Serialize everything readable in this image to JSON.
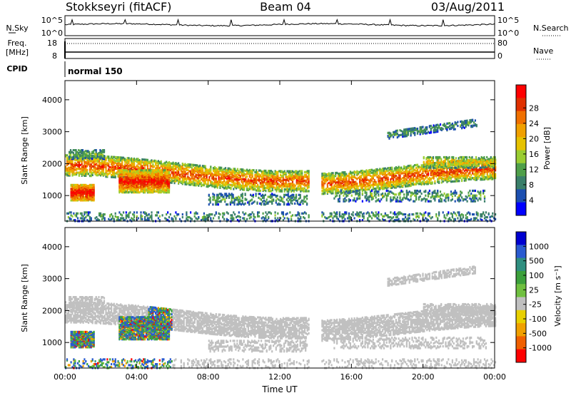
{
  "header": {
    "station": "Stokkseyri (fitACF)",
    "beam": "Beam 04",
    "date": "03/Aug/2011"
  },
  "status_panels": {
    "nsky_label": "N.Sky",
    "nsky_ticks": [
      "10^5",
      "10^0"
    ],
    "nsearch_label": "N.Search",
    "nsearch_ticks": [
      "10^5",
      "10^0"
    ],
    "freq_label_line1": "Freq.",
    "freq_label_line2": "[MHz]",
    "freq_ticks": [
      "18",
      "8"
    ],
    "nave_label": "Nave",
    "nave_ticks": [
      "80",
      "0"
    ],
    "cpid_label": "CPID",
    "cpid_value": "normal 150"
  },
  "chart_data": [
    {
      "type": "heatmap",
      "name": "power",
      "ylabel": "Slant Range [km]",
      "yticks": [
        1000,
        2000,
        3000,
        4000
      ],
      "ylim": [
        200,
        4600
      ],
      "xticks": [
        "00:00",
        "04:00",
        "08:00",
        "12:00",
        "16:00",
        "20:00",
        "00:00"
      ],
      "xlim_hours": [
        0,
        24
      ],
      "colorbar": {
        "label": "Power [dB]",
        "ticks": [
          "4",
          "8",
          "12",
          "16",
          "20",
          "24",
          "28"
        ],
        "colors": [
          "#0000ff",
          "#1c4fb0",
          "#3a7f6a",
          "#4f9f4a",
          "#9acd32",
          "#e6c200",
          "#f0a000",
          "#f07000",
          "#e03000",
          "#ff0000"
        ]
      }
    },
    {
      "type": "heatmap",
      "name": "velocity",
      "ylabel": "Slant Range [km]",
      "yticks": [
        1000,
        2000,
        3000,
        4000
      ],
      "ylim": [
        200,
        4600
      ],
      "xticks": [
        "00:00",
        "04:00",
        "08:00",
        "12:00",
        "16:00",
        "20:00",
        "00:00"
      ],
      "xlabel": "Time UT",
      "xlim_hours": [
        0,
        24
      ],
      "colorbar": {
        "label": "Velocity [m s⁻¹]",
        "ticks": [
          "1000",
          "500",
          "100",
          "25",
          "-25",
          "-100",
          "-500",
          "-1000"
        ],
        "colors": [
          "#0000d0",
          "#2a5bd0",
          "#2f8f80",
          "#3ca03c",
          "#70c040",
          "#c0c0c0",
          "#e8d000",
          "#f0a000",
          "#f06000",
          "#ff0000"
        ]
      }
    }
  ]
}
